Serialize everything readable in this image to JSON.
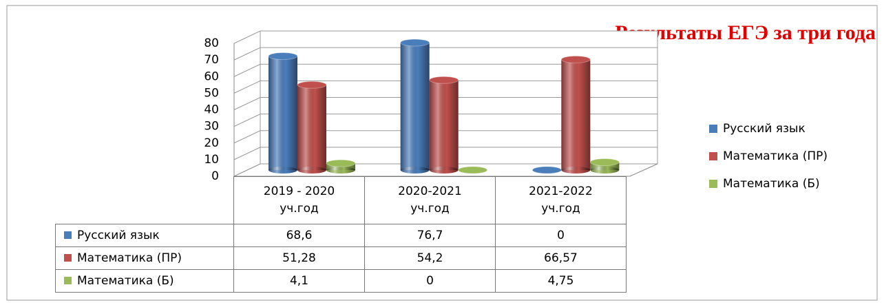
{
  "chart_data": {
    "type": "bar3d",
    "title": "Результаты ЕГЭ за три года",
    "categories": [
      "2019 - 2020 уч.год",
      "2020-2021 уч.год",
      "2021-2022 уч.год"
    ],
    "series": [
      {
        "name": "Русский язык",
        "color": "#4a7ebb",
        "values": [
          68.6,
          76.7,
          0
        ],
        "value_labels": [
          "68,6",
          "76,7",
          "0"
        ]
      },
      {
        "name": "Математика (ПР)",
        "color": "#c0504d",
        "values": [
          51.28,
          54.2,
          66.57
        ],
        "value_labels": [
          "51,28",
          "54,2",
          "66,57"
        ]
      },
      {
        "name": "Математика (Б)",
        "color": "#9bbb59",
        "values": [
          4.1,
          0,
          4.75
        ],
        "value_labels": [
          "4,1",
          "0",
          "4,75"
        ]
      }
    ],
    "ylim": [
      0,
      80
    ],
    "yticks": [
      0,
      10,
      20,
      30,
      40,
      50,
      60,
      70,
      80
    ],
    "grid": true,
    "legend": "right"
  }
}
